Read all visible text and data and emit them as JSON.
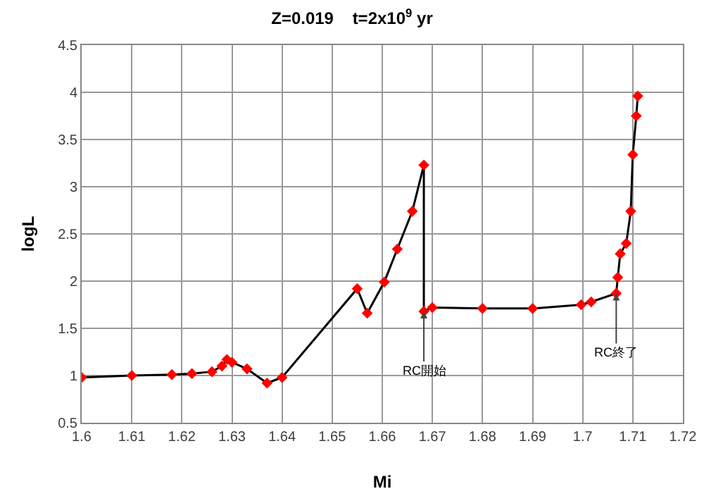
{
  "chart_data": {
    "type": "line",
    "title": "Z=0.019    t=2x10$^{9}$ yr",
    "xlabel": "Mi",
    "ylabel": "logL",
    "series": [
      {
        "color": "#ff0000",
        "x": [
          1.6,
          1.61,
          1.618,
          1.622,
          1.626,
          1.628,
          1.629,
          1.63,
          1.633,
          1.637,
          1.64,
          1.655,
          1.657,
          1.6604,
          1.663,
          1.666,
          1.6683,
          1.6683,
          1.67,
          1.68,
          1.69,
          1.6997,
          1.7017,
          1.7067,
          1.707,
          1.7075,
          1.7087,
          1.7096,
          1.71,
          1.7107,
          1.711
        ],
        "values": [
          0.98,
          1.0,
          1.01,
          1.02,
          1.04,
          1.1,
          1.17,
          1.14,
          1.07,
          0.92,
          0.98,
          1.92,
          1.66,
          1.99,
          2.34,
          2.74,
          3.23,
          1.68,
          1.72,
          1.71,
          1.71,
          1.75,
          1.78,
          1.87,
          2.04,
          2.29,
          2.4,
          2.74,
          3.34,
          3.75,
          3.96
        ]
      }
    ],
    "xlim": [
      1.6,
      1.72
    ],
    "xticks": [
      1.6,
      1.61,
      1.62,
      1.63,
      1.64,
      1.65,
      1.66,
      1.67,
      1.68,
      1.69,
      1.7,
      1.71,
      1.72
    ],
    "ylim": [
      0.5,
      4.5
    ],
    "yticks": [
      0.5,
      1,
      1.5,
      2,
      2.5,
      3,
      3.5,
      4,
      4.5
    ],
    "grid": true,
    "marker": "diamond",
    "line_style": "solid",
    "annotations": [
      {
        "text": "RC開始",
        "x": 1.6683,
        "y": 1.68
      },
      {
        "text": "RC終了",
        "x": 1.7067,
        "y": 1.87
      }
    ]
  }
}
